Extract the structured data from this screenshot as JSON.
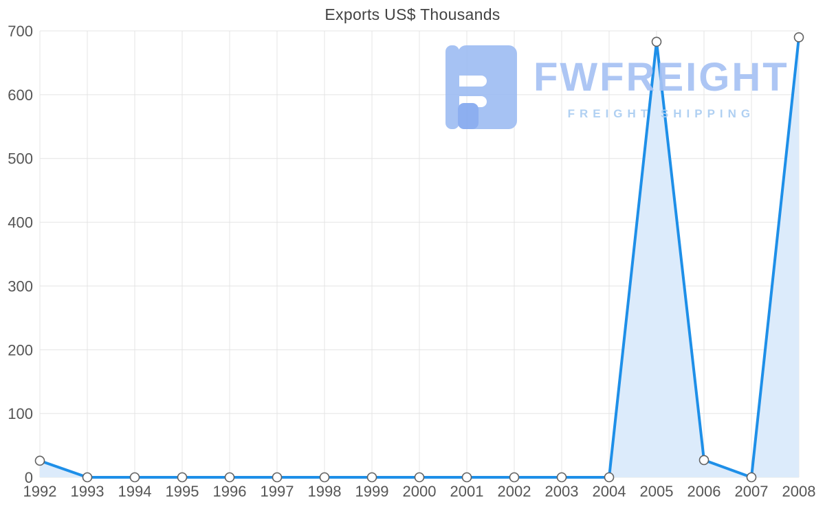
{
  "chart_data": {
    "type": "area",
    "title": "Exports US$ Thousands",
    "categories": [
      "1992",
      "1993",
      "1994",
      "1995",
      "1996",
      "1997",
      "1998",
      "1999",
      "2000",
      "2001",
      "2002",
      "2003",
      "2004",
      "2005",
      "2006",
      "2007",
      "2008"
    ],
    "values": [
      26,
      0,
      0,
      0,
      0,
      0,
      0,
      0,
      0,
      0,
      0,
      0,
      0,
      683,
      27,
      0,
      690
    ],
    "ylim": [
      0,
      700
    ],
    "yticks": [
      0,
      100,
      200,
      300,
      400,
      500,
      600,
      700
    ],
    "xlabel": "",
    "ylabel": "",
    "grid": true,
    "legend": "none",
    "line_color": "#1e8fe8",
    "area_color": "#dcebfb",
    "point_fill": "#ffffff",
    "point_stroke": "#616161",
    "grid_color": "#e4e4e4",
    "label_color": "#555555"
  },
  "watermark": {
    "brand": "FWFREIGHT",
    "tagline": "FREIGHT SHIPPING",
    "logo_color": "#9fbdf3"
  }
}
